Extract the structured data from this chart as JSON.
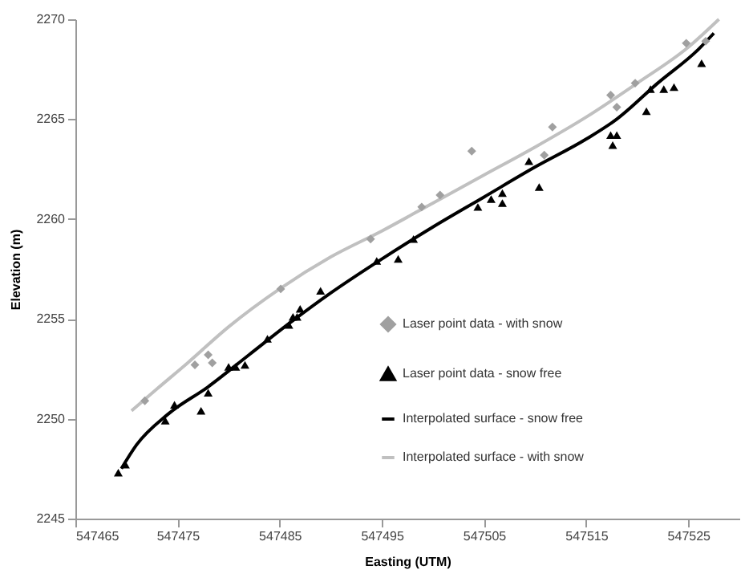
{
  "chart_data": {
    "type": "scatter",
    "xlabel": "Easting (UTM)",
    "ylabel": "Elevation (m)",
    "xlim": [
      547465,
      547530
    ],
    "ylim": [
      2245,
      2270
    ],
    "xticks": [
      547465,
      547475,
      547485,
      547495,
      547505,
      547515,
      547525
    ],
    "yticks": [
      2245,
      2250,
      2255,
      2260,
      2265,
      2270
    ],
    "grid": false,
    "legend": "right",
    "series": [
      {
        "name": "Laser point data - with snow",
        "type": "scatter",
        "marker": "diamond",
        "color": "#a0a0a0",
        "x": [
          547471.8,
          547476.7,
          547478.0,
          547478.4,
          547485.1,
          547493.9,
          547498.9,
          547500.7,
          547503.8,
          547510.9,
          547511.7,
          547517.4,
          547518.0,
          547519.8,
          547524.8,
          547526.7
        ],
        "values": [
          2250.9,
          2252.7,
          2253.2,
          2252.8,
          2256.5,
          2259.0,
          2260.6,
          2261.2,
          2263.4,
          2263.2,
          2264.6,
          2266.2,
          2265.6,
          2266.8,
          2268.8,
          2268.9
        ]
      },
      {
        "name": "Laser point data - snow free",
        "type": "scatter",
        "marker": "triangle",
        "color": "#000000",
        "x": [
          547469.2,
          547469.9,
          547473.8,
          547474.7,
          547477.3,
          547478.0,
          547480.0,
          547480.7,
          547481.6,
          547483.8,
          547485.9,
          547486.3,
          547486.7,
          547487.0,
          547489.0,
          547494.5,
          547496.6,
          547498.1,
          547504.4,
          547505.7,
          547506.8,
          547506.8,
          547509.4,
          547510.4,
          547517.4,
          547518.0,
          547517.6,
          547520.9,
          547521.3,
          547522.6,
          547523.6,
          547526.3
        ],
        "values": [
          2247.3,
          2247.7,
          2249.9,
          2250.7,
          2250.4,
          2251.3,
          2252.6,
          2252.6,
          2252.7,
          2254.0,
          2254.7,
          2255.1,
          2255.1,
          2255.5,
          2256.4,
          2257.9,
          2258.0,
          2259.0,
          2260.6,
          2261.0,
          2260.8,
          2261.3,
          2262.9,
          2261.6,
          2264.2,
          2264.2,
          2263.7,
          2265.4,
          2266.5,
          2266.5,
          2266.6,
          2267.8
        ]
      },
      {
        "name": "Interpolated surface - snow free",
        "type": "line",
        "marker": "none",
        "color": "#000000",
        "x": [
          547469.5,
          547471,
          547474,
          547478,
          547482,
          547486,
          547490,
          547495,
          547500,
          547505,
          547510,
          547515,
          547518,
          547522,
          547526,
          547527.5
        ],
        "values": [
          2247.5,
          2248.7,
          2250.2,
          2251.6,
          2253.2,
          2254.8,
          2256.3,
          2258.0,
          2259.6,
          2261.1,
          2262.6,
          2264.0,
          2265.0,
          2266.8,
          2268.5,
          2269.3
        ]
      },
      {
        "name": "Interpolated surface - with snow",
        "type": "line",
        "marker": "none",
        "color": "#c0c0c0",
        "x": [
          547470.5,
          547473,
          547476,
          547480,
          547485,
          547490,
          547495,
          547500,
          547505,
          547510,
          547515,
          547520,
          547525,
          547528
        ],
        "values": [
          2250.4,
          2251.5,
          2252.8,
          2254.6,
          2256.5,
          2258.1,
          2259.4,
          2260.8,
          2262.2,
          2263.6,
          2265.1,
          2266.8,
          2268.6,
          2270.0
        ]
      }
    ]
  }
}
